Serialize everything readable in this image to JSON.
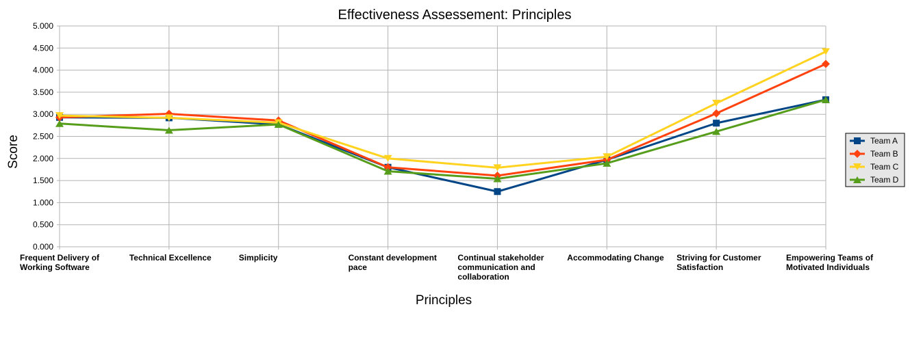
{
  "chart_data": {
    "type": "line",
    "title": "Effectiveness Assessement: Principles",
    "xlabel": "Principles",
    "ylabel": "Score",
    "ylim": [
      0,
      5
    ],
    "ytick_labels": [
      "0.000",
      "0.500",
      "1.000",
      "1.500",
      "2.000",
      "2.500",
      "3.000",
      "3.500",
      "4.000",
      "4.500",
      "5.000"
    ],
    "grid": true,
    "legend_position": "right",
    "categories": [
      [
        "Frequent Delivery of",
        "Working Software"
      ],
      [
        "Technical Excellence"
      ],
      [
        "Simplicity"
      ],
      [
        "Constant development",
        "pace"
      ],
      [
        "Continual stakeholder",
        "communication and",
        "collaboration"
      ],
      [
        "Accommodating Change"
      ],
      [
        "Striving for Customer",
        "Satisfaction"
      ],
      [
        "Empowering Teams of",
        "Motivated Individuals"
      ]
    ],
    "series": [
      {
        "name": "Team A",
        "color": "#004586",
        "marker": "square",
        "values": [
          2.93,
          2.92,
          2.77,
          1.8,
          1.25,
          1.97,
          2.8,
          3.33
        ]
      },
      {
        "name": "Team B",
        "color": "#ff420e",
        "marker": "diamond",
        "values": [
          2.93,
          3.01,
          2.86,
          1.8,
          1.61,
          1.97,
          3.02,
          4.14
        ]
      },
      {
        "name": "Team C",
        "color": "#ffd320",
        "marker": "triangle-down",
        "values": [
          2.97,
          2.92,
          2.81,
          2.0,
          1.79,
          2.04,
          3.25,
          4.42
        ]
      },
      {
        "name": "Team D",
        "color": "#579d1c",
        "marker": "triangle-up",
        "values": [
          2.79,
          2.64,
          2.77,
          1.71,
          1.54,
          1.89,
          2.61,
          3.33
        ]
      }
    ]
  }
}
